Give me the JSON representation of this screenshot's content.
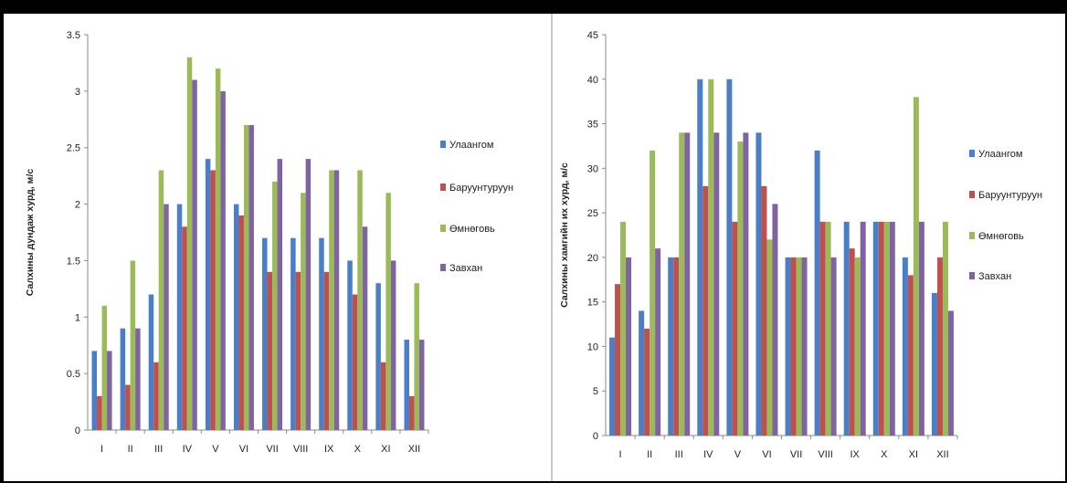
{
  "chart_data": [
    {
      "type": "bar",
      "categories": [
        "I",
        "II",
        "III",
        "IV",
        "V",
        "VI",
        "VII",
        "VIII",
        "IX",
        "X",
        "XI",
        "XII"
      ],
      "ylabel": "Салхины дундаж хурд, м/с",
      "ylim": [
        0,
        3.5
      ],
      "yticks": [
        "0",
        "0.5",
        "1",
        "1.5",
        "2",
        "2.5",
        "3",
        "3.5"
      ],
      "legend": "right",
      "series": [
        {
          "name": "Улаангом",
          "color": "#4a7ec6",
          "values": [
            0.7,
            0.9,
            1.2,
            2.0,
            2.4,
            2.0,
            1.7,
            1.7,
            1.7,
            1.5,
            1.3,
            0.8
          ]
        },
        {
          "name": "Баруунтуруун",
          "color": "#c0504d",
          "values": [
            0.3,
            0.4,
            0.6,
            1.8,
            2.3,
            1.9,
            1.4,
            1.4,
            1.4,
            1.2,
            0.6,
            0.3
          ]
        },
        {
          "name": "Өмнөговь",
          "color": "#9bbb59",
          "values": [
            1.1,
            1.5,
            2.3,
            3.3,
            3.2,
            2.7,
            2.2,
            2.1,
            2.3,
            2.3,
            2.1,
            1.3
          ]
        },
        {
          "name": "Завхан",
          "color": "#8064a2",
          "values": [
            0.7,
            0.9,
            2.0,
            3.1,
            3.0,
            2.7,
            2.4,
            2.4,
            2.3,
            1.8,
            1.5,
            0.8
          ]
        }
      ]
    },
    {
      "type": "bar",
      "categories": [
        "I",
        "II",
        "III",
        "IV",
        "V",
        "VI",
        "VII",
        "VIII",
        "IX",
        "X",
        "XI",
        "XII"
      ],
      "ylabel": "Салхины хамгийн их хурд, м/с",
      "ylim": [
        0,
        45
      ],
      "yticks": [
        "0",
        "5",
        "10",
        "15",
        "20",
        "25",
        "30",
        "35",
        "40",
        "45"
      ],
      "legend": "right",
      "series": [
        {
          "name": "Улаангом",
          "color": "#4a7ec6",
          "values": [
            11,
            14,
            20,
            40,
            40,
            34,
            20,
            32,
            24,
            24,
            20,
            16
          ]
        },
        {
          "name": "Баруунтуруун",
          "color": "#c0504d",
          "values": [
            17,
            12,
            20,
            28,
            24,
            28,
            20,
            24,
            21,
            24,
            18,
            20
          ]
        },
        {
          "name": "Өмнөговь",
          "color": "#9bbb59",
          "values": [
            24,
            32,
            34,
            40,
            33,
            22,
            20,
            24,
            20,
            24,
            38,
            24
          ]
        },
        {
          "name": "Завхан",
          "color": "#8064a2",
          "values": [
            20,
            21,
            34,
            34,
            34,
            26,
            20,
            20,
            24,
            24,
            24,
            14
          ]
        }
      ]
    }
  ]
}
